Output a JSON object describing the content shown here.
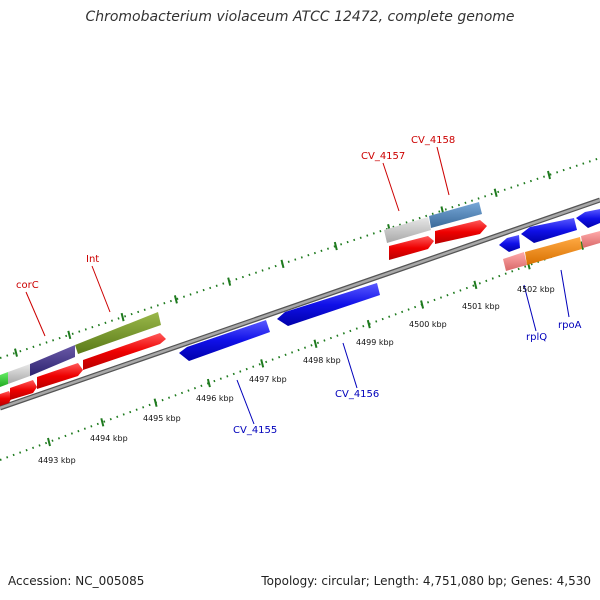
{
  "title": "Chromobacterium violaceum ATCC 12472, complete genome",
  "footer": {
    "accession": "Accession: NC_005085",
    "summary": "Topology: circular; Length: 4,751,080 bp; Genes: 4,530"
  },
  "colors": {
    "backbone": "#808080",
    "tick": "#1e7a1e",
    "forward_label": "#cc0000",
    "reverse_label": "#0000bb"
  },
  "scale_labels": [
    {
      "text": "4493 kbp"
    },
    {
      "text": "4494 kbp"
    },
    {
      "text": "4495 kbp"
    },
    {
      "text": "4496 kbp"
    },
    {
      "text": "4497 kbp"
    },
    {
      "text": "4498 kbp"
    },
    {
      "text": "4499 kbp"
    },
    {
      "text": "4500 kbp"
    },
    {
      "text": "4501 kbp"
    },
    {
      "text": "4502 kbp"
    }
  ],
  "gene_labels": [
    {
      "text": "corC",
      "strand": "forward"
    },
    {
      "text": "Int",
      "strand": "forward"
    },
    {
      "text": "CV_4157",
      "strand": "forward"
    },
    {
      "text": "CV_4158",
      "strand": "forward"
    },
    {
      "text": "CV_4155",
      "strand": "reverse"
    },
    {
      "text": "CV_4156",
      "strand": "reverse"
    },
    {
      "text": "rplQ",
      "strand": "reverse"
    },
    {
      "text": "rpoA",
      "strand": "reverse"
    }
  ]
}
